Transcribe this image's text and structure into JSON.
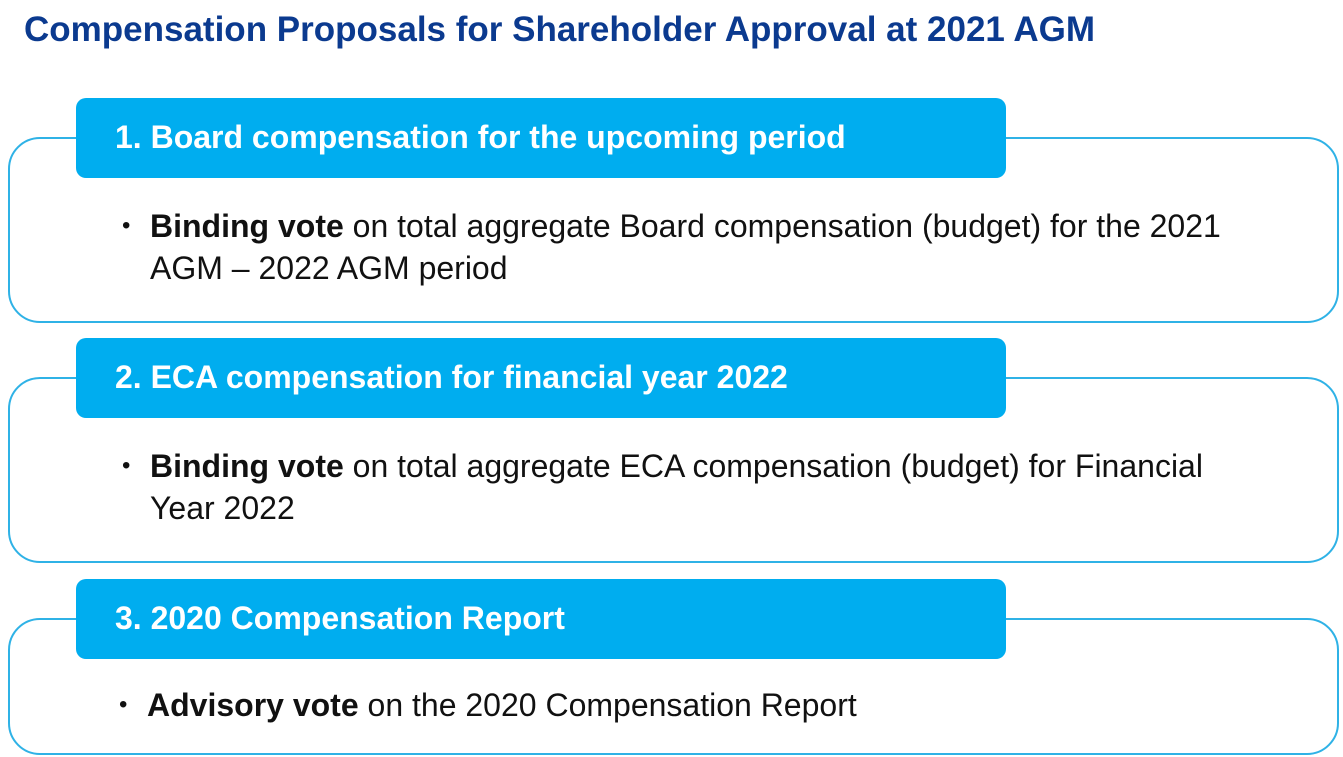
{
  "title": "Compensation Proposals for Shareholder Approval at 2021 AGM",
  "sections": [
    {
      "heading": "1. Board compensation for the upcoming period",
      "bullet": {
        "bold": "Binding vote",
        "text": "on total aggregate Board compensation (budget) for the 2021 AGM – 2022 AGM period"
      }
    },
    {
      "heading": "2. ECA compensation for financial year 2022",
      "bullet": {
        "bold": "Binding vote",
        "text": "on total aggregate ECA compensation (budget) for Financial Year 2022"
      }
    },
    {
      "heading": "3. 2020 Compensation Report",
      "bullet": {
        "bold": "Advisory vote",
        "text": "on the 2020 Compensation Report"
      }
    }
  ]
}
